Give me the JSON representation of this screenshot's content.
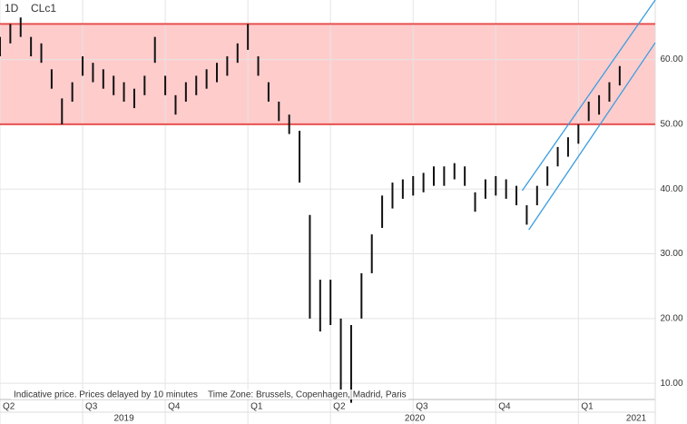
{
  "chart_data": {
    "type": "ohlc",
    "interval": "1D",
    "symbol": "CLc1",
    "footnote": "Indicative price. Prices delayed by 10 minutes",
    "timezone": "Time Zone: Brussels, Copenhagen, Madrid, Paris",
    "color": "#111111",
    "x": [
      0,
      0.125,
      0.25,
      0.375,
      0.5,
      0.625,
      0.75,
      0.875,
      1,
      1.125,
      1.25,
      1.375,
      1.5,
      1.625,
      1.75,
      1.875,
      2,
      2.125,
      2.25,
      2.375,
      2.5,
      2.625,
      2.75,
      2.875,
      3,
      3.125,
      3.25,
      3.375,
      3.5,
      3.625,
      3.75,
      3.875,
      4,
      4.125,
      4.25,
      4.375,
      4.5,
      4.625,
      4.75,
      4.875,
      5,
      5.125,
      5.25,
      5.375,
      5.5,
      5.625,
      5.75,
      5.875,
      6,
      6.125,
      6.25,
      6.375,
      6.5,
      6.625,
      6.75,
      6.875,
      7,
      7.125,
      7.25,
      7.375,
      7.5
    ],
    "high": [
      63.5,
      65.5,
      66.5,
      63.5,
      62.5,
      58.5,
      54,
      56.5,
      60.5,
      59.5,
      58.5,
      57.5,
      56.5,
      55.5,
      57.5,
      63.5,
      57.5,
      54.5,
      56.5,
      57.5,
      58.5,
      59.5,
      60.5,
      62.5,
      65.5,
      60.5,
      56.5,
      53.5,
      51.5,
      49,
      36,
      26,
      26,
      20,
      19,
      27,
      33,
      39,
      41,
      41.5,
      42,
      42.5,
      43.5,
      43.5,
      44,
      43.5,
      39.5,
      41.5,
      42,
      41.5,
      40.5,
      37.5,
      40.5,
      43.5,
      46.5,
      48,
      50,
      53.5,
      54.5,
      56.5,
      59
    ],
    "low": [
      60.5,
      62.5,
      63.5,
      60.5,
      59.5,
      55.5,
      50,
      53.5,
      57.5,
      56.5,
      55.5,
      54.5,
      53.5,
      52.5,
      54.5,
      59.5,
      54.5,
      51.5,
      53.5,
      54.5,
      55.5,
      56.5,
      57.5,
      59.5,
      61.5,
      57.5,
      53.5,
      50.5,
      48.5,
      41,
      20,
      18,
      19,
      9,
      7,
      20,
      27,
      34,
      37,
      38.5,
      39,
      39.5,
      40.5,
      40.5,
      41.5,
      40.5,
      36.5,
      38.5,
      39,
      38.5,
      37.5,
      34.5,
      37.5,
      40.5,
      43.5,
      45,
      47,
      50.5,
      51.5,
      53.5,
      56
    ],
    "xlim": [
      0,
      7.93
    ],
    "ylim": [
      7.5,
      69.2
    ],
    "xticks": [
      {
        "value": 0,
        "label": "Q2"
      },
      {
        "value": 1,
        "label": "Q3"
      },
      {
        "value": 2,
        "label": "Q4"
      },
      {
        "value": 3,
        "label": "Q1"
      },
      {
        "value": 4,
        "label": "Q2"
      },
      {
        "value": 5,
        "label": "Q3"
      },
      {
        "value": 6,
        "label": "Q4"
      },
      {
        "value": 7,
        "label": "Q1"
      }
    ],
    "year_labels": [
      {
        "value": 1.5,
        "label": "2019"
      },
      {
        "value": 5.02,
        "label": "2020"
      },
      {
        "value": 7.7,
        "label": "2021"
      }
    ],
    "yticks": [
      {
        "value": 10,
        "label": "10.00"
      },
      {
        "value": 20,
        "label": "20.00"
      },
      {
        "value": 30,
        "label": "30.00"
      },
      {
        "value": 40,
        "label": "40.00"
      },
      {
        "value": 50,
        "label": "50.00"
      },
      {
        "value": 60,
        "label": "60.00"
      }
    ],
    "grid": true,
    "band": {
      "range": [
        50,
        65.5
      ],
      "color": "#ffcccc",
      "line_color": "#e85050"
    },
    "channel": {
      "color": "#3a9ee0",
      "lines": [
        [
          [
            6.32,
            39.75
          ],
          [
            7.93,
            69.2
          ]
        ],
        [
          [
            6.4,
            33.7
          ],
          [
            7.93,
            62.6
          ]
        ]
      ]
    }
  }
}
